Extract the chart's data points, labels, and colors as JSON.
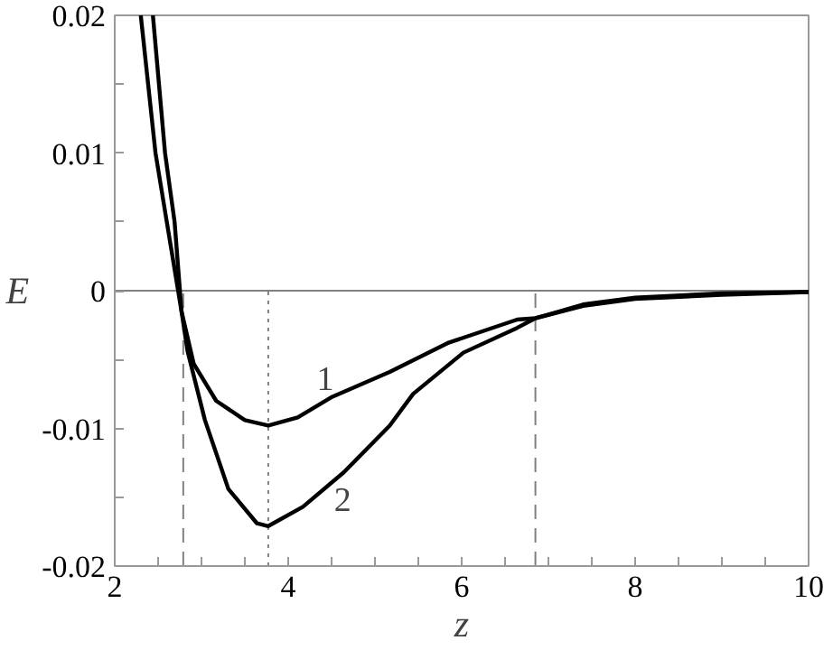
{
  "chart_data": {
    "type": "line",
    "xlabel": "z",
    "ylabel": "E",
    "xlim": [
      2,
      10
    ],
    "ylim": [
      -0.02,
      0.02
    ],
    "xticks": [
      2,
      {
        "value": 2.5,
        "label": null
      },
      {
        "value": 3,
        "label": null
      },
      {
        "value": 3.5,
        "label": null
      },
      4,
      {
        "value": 4.5,
        "label": null
      },
      {
        "value": 5,
        "label": null
      },
      {
        "value": 5.5,
        "label": null
      },
      6,
      {
        "value": 6.5,
        "label": null
      },
      {
        "value": 7,
        "label": null
      },
      {
        "value": 7.5,
        "label": null
      },
      8,
      {
        "value": 8.5,
        "label": null
      },
      {
        "value": 9,
        "label": null
      },
      {
        "value": 9.5,
        "label": null
      },
      10
    ],
    "yticks": [
      -0.02,
      {
        "value": -0.015,
        "label": null
      },
      -0.01,
      {
        "value": -0.005,
        "label": null
      },
      0,
      {
        "value": 0.005,
        "label": null
      },
      0.01,
      {
        "value": 0.015,
        "label": null
      },
      0.02
    ],
    "series": [
      {
        "color": "#000000",
        "x": [
          2.44,
          2.58,
          2.69,
          2.77,
          2.91,
          3.17,
          3.5,
          3.77,
          4.11,
          4.51,
          5.17,
          5.84,
          6.64,
          6.85,
          7.4,
          8,
          9,
          10
        ],
        "values": [
          0.02,
          0.01,
          0.005,
          -0.0015,
          -0.0053,
          -0.008,
          -0.0094,
          -0.0098,
          -0.0092,
          -0.0077,
          -0.0059,
          -0.0038,
          -0.0021,
          -0.002,
          -0.0011,
          -0.0006,
          -0.0003,
          -0.0001
        ]
      },
      {
        "color": "#000000",
        "x": [
          2.3,
          2.47,
          2.6,
          2.77,
          2.84,
          3.04,
          3.31,
          3.64,
          3.77,
          4.17,
          4.64,
          5.17,
          5.44,
          6.02,
          6.64,
          6.85,
          7.4,
          8,
          9,
          10
        ],
        "values": [
          0.02,
          0.01,
          0.005,
          -0.0015,
          -0.0044,
          -0.0094,
          -0.0144,
          -0.0169,
          -0.0171,
          -0.0157,
          -0.0132,
          -0.0098,
          -0.0075,
          -0.0045,
          -0.0027,
          -0.002,
          -0.001,
          -0.0005,
          -0.0002,
          -0.0001
        ]
      }
    ],
    "ref_lines": [
      {
        "axis": "y",
        "value": 0,
        "color": "#808080",
        "line_style": "solid"
      },
      {
        "axis": "x",
        "value": 2.79,
        "color": "#808080",
        "line_style": "dashed"
      },
      {
        "axis": "x",
        "value": 3.77,
        "color": "#808080",
        "line_style": "dotted"
      },
      {
        "axis": "x",
        "value": 6.85,
        "color": "#808080",
        "line_style": "dashed"
      }
    ],
    "annotations": [
      "1",
      "2"
    ],
    "grid": false
  }
}
